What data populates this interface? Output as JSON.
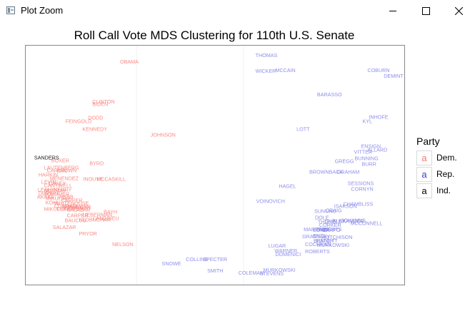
{
  "window": {
    "title": "Plot Zoom",
    "controls": {
      "minimize": "—",
      "maximize": "☐",
      "close": "✕"
    }
  },
  "colors": {
    "Dem.": "#f8766d",
    "Rep.": "#7a7ae6",
    "Ind.": "#000000",
    "grid": "#f0f0f0",
    "panel_border": "#888888"
  },
  "chart_data": {
    "type": "scatter",
    "title": "Roll Call Vote MDS Clustering for 110th U.S. Senate",
    "xlabel": "",
    "ylabel": "",
    "xlim": [
      0,
      534
    ],
    "ylim": [
      0,
      336
    ],
    "grid": true,
    "legend": {
      "title": "Party",
      "position": "right",
      "items": [
        {
          "label": "Dem.",
          "key": "a"
        },
        {
          "label": "Rep.",
          "key": "a"
        },
        {
          "label": "Ind.",
          "key": "a"
        }
      ]
    },
    "points": [
      {
        "name": "THOMAS",
        "party": "Rep.",
        "x": 324,
        "y": 320
      },
      {
        "name": "WICKER",
        "party": "Rep.",
        "x": 324,
        "y": 298
      },
      {
        "name": "MCCAIN",
        "party": "Rep.",
        "x": 352,
        "y": 299
      },
      {
        "name": "COBURN",
        "party": "Rep.",
        "x": 482,
        "y": 299
      },
      {
        "name": "DEMINT",
        "party": "Rep.",
        "x": 505,
        "y": 291
      },
      {
        "name": "BARASSO",
        "party": "Rep.",
        "x": 411,
        "y": 265
      },
      {
        "name": "INHOFE",
        "party": "Rep.",
        "x": 484,
        "y": 233
      },
      {
        "name": "KYL",
        "party": "Rep.",
        "x": 475,
        "y": 227
      },
      {
        "name": "LOTT",
        "party": "Rep.",
        "x": 382,
        "y": 216
      },
      {
        "name": "ENSIGN",
        "party": "Rep.",
        "x": 473,
        "y": 192
      },
      {
        "name": "ALLARD",
        "party": "Rep.",
        "x": 482,
        "y": 187
      },
      {
        "name": "VITTER",
        "party": "Rep.",
        "x": 463,
        "y": 184
      },
      {
        "name": "BUNNING",
        "party": "Rep.",
        "x": 464,
        "y": 175
      },
      {
        "name": "GREGG",
        "party": "Rep.",
        "x": 436,
        "y": 171
      },
      {
        "name": "BURR",
        "party": "Rep.",
        "x": 474,
        "y": 167
      },
      {
        "name": "BROWNBACK",
        "party": "Rep.",
        "x": 400,
        "y": 156
      },
      {
        "name": "GRAHAM",
        "party": "Rep.",
        "x": 439,
        "y": 156
      },
      {
        "name": "SESSIONS",
        "party": "Rep.",
        "x": 454,
        "y": 140
      },
      {
        "name": "CORNYN",
        "party": "Rep.",
        "x": 459,
        "y": 132
      },
      {
        "name": "HAGEL",
        "party": "Rep.",
        "x": 357,
        "y": 136
      },
      {
        "name": "VOINOVICH",
        "party": "Rep.",
        "x": 325,
        "y": 115
      },
      {
        "name": "CHAMBLISS",
        "party": "Rep.",
        "x": 448,
        "y": 111
      },
      {
        "name": "ISAKSON",
        "party": "Rep.",
        "x": 435,
        "y": 108
      },
      {
        "name": "SUNUNU",
        "party": "Rep.",
        "x": 407,
        "y": 101
      },
      {
        "name": "CRAIG",
        "party": "Rep.",
        "x": 423,
        "y": 102
      },
      {
        "name": "DOLE",
        "party": "Rep.",
        "x": 408,
        "y": 92
      },
      {
        "name": "CORKER",
        "party": "Rep.",
        "x": 414,
        "y": 81
      },
      {
        "name": "THUNE",
        "party": "Rep.",
        "x": 412,
        "y": 86
      },
      {
        "name": "ALEXANDER",
        "party": "Rep.",
        "x": 433,
        "y": 87
      },
      {
        "name": "JOHANNS",
        "party": "Rep.",
        "x": 445,
        "y": 88
      },
      {
        "name": "MCCONNELL",
        "party": "Rep.",
        "x": 458,
        "y": 84
      },
      {
        "name": "SHELBY",
        "party": "Rep.",
        "x": 422,
        "y": 87
      },
      {
        "name": "MARTINEZ",
        "party": "Rep.",
        "x": 392,
        "y": 75
      },
      {
        "name": "BOND",
        "party": "Rep.",
        "x": 405,
        "y": 74
      },
      {
        "name": "ROBERTS",
        "party": "Rep.",
        "x": 411,
        "y": 75
      },
      {
        "name": "CRAPO",
        "party": "Rep.",
        "x": 418,
        "y": 74
      },
      {
        "name": "ENZI",
        "party": "Rep.",
        "x": 405,
        "y": 66
      },
      {
        "name": "HUTCHISON",
        "party": "Rep.",
        "x": 418,
        "y": 64
      },
      {
        "name": "GRASSLEY",
        "party": "Rep.",
        "x": 390,
        "y": 65
      },
      {
        "name": "BENNETT",
        "party": "Rep.",
        "x": 406,
        "y": 59
      },
      {
        "name": "HATCH",
        "party": "Rep.",
        "x": 410,
        "y": 59
      },
      {
        "name": "COCHRAN",
        "party": "Rep.",
        "x": 394,
        "y": 54
      },
      {
        "name": "MURKOWSKI",
        "party": "Rep.",
        "x": 411,
        "y": 53
      },
      {
        "name": "LUGAR",
        "party": "Rep.",
        "x": 342,
        "y": 52
      },
      {
        "name": "WARNER",
        "party": "Rep.",
        "x": 351,
        "y": 45
      },
      {
        "name": "ROBERTS",
        "party": "Rep.",
        "x": 394,
        "y": 44
      },
      {
        "name": "DOMENICI",
        "party": "Rep.",
        "x": 352,
        "y": 40
      },
      {
        "name": "COLLINS",
        "party": "Rep.",
        "x": 226,
        "y": 33
      },
      {
        "name": "SPECTER",
        "party": "Rep.",
        "x": 250,
        "y": 33
      },
      {
        "name": "SNOWE",
        "party": "Rep.",
        "x": 192,
        "y": 27
      },
      {
        "name": "SMITH",
        "party": "Rep.",
        "x": 256,
        "y": 17
      },
      {
        "name": "COLEMAN",
        "party": "Rep.",
        "x": 300,
        "y": 14
      },
      {
        "name": "MURKOWSKI",
        "party": "Rep.",
        "x": 335,
        "y": 18
      },
      {
        "name": "STEVENS",
        "party": "Rep.",
        "x": 330,
        "y": 13
      },
      {
        "name": "OBAMA",
        "party": "Dem.",
        "x": 133,
        "y": 311
      },
      {
        "name": "CLINTON",
        "party": "Dem.",
        "x": 94,
        "y": 255
      },
      {
        "name": "BIDEN",
        "party": "Dem.",
        "x": 94,
        "y": 251
      },
      {
        "name": "DODD",
        "party": "Dem.",
        "x": 88,
        "y": 232
      },
      {
        "name": "FEINGOLD",
        "party": "Dem.",
        "x": 56,
        "y": 227
      },
      {
        "name": "KENNEDY",
        "party": "Dem.",
        "x": 80,
        "y": 216
      },
      {
        "name": "JOHNSON",
        "party": "Dem.",
        "x": 176,
        "y": 208
      },
      {
        "name": "BOXER",
        "party": "Dem.",
        "x": 36,
        "y": 172
      },
      {
        "name": "BYRD",
        "party": "Dem.",
        "x": 90,
        "y": 168
      },
      {
        "name": "LAUTENBERG",
        "party": "Dem.",
        "x": 26,
        "y": 162
      },
      {
        "name": "CARDIN",
        "party": "Dem.",
        "x": 30,
        "y": 158
      },
      {
        "name": "BROWN",
        "party": "Dem.",
        "x": 44,
        "y": 158
      },
      {
        "name": "HARKIN",
        "party": "Dem.",
        "x": 18,
        "y": 152
      },
      {
        "name": "MENENDEZ",
        "party": "Dem.",
        "x": 34,
        "y": 147
      },
      {
        "name": "INOUYE",
        "party": "Dem.",
        "x": 81,
        "y": 146
      },
      {
        "name": "MCCASKILL",
        "party": "Dem.",
        "x": 100,
        "y": 146
      },
      {
        "name": "LEVIN",
        "party": "Dem.",
        "x": 22,
        "y": 142
      },
      {
        "name": "CASEY",
        "party": "Dem.",
        "x": 32,
        "y": 140
      },
      {
        "name": "CANTWELL",
        "party": "Dem.",
        "x": 26,
        "y": 137
      },
      {
        "name": "LEAHY",
        "party": "Dem.",
        "x": 17,
        "y": 131
      },
      {
        "name": "MURRAY",
        "party": "Dem.",
        "x": 26,
        "y": 130
      },
      {
        "name": "KERRY",
        "party": "Dem.",
        "x": 40,
        "y": 131
      },
      {
        "name": "DURBIN",
        "party": "Dem.",
        "x": 18,
        "y": 126
      },
      {
        "name": "SCHUMER",
        "party": "Dem.",
        "x": 25,
        "y": 125
      },
      {
        "name": "AKAKA",
        "party": "Dem.",
        "x": 16,
        "y": 121
      },
      {
        "name": "MIKULSKI",
        "party": "Dem.",
        "x": 28,
        "y": 119
      },
      {
        "name": "WEBB",
        "party": "Dem.",
        "x": 46,
        "y": 121
      },
      {
        "name": "KOHL",
        "party": "Dem.",
        "x": 28,
        "y": 113
      },
      {
        "name": "WHITEHOUSE",
        "party": "Dem.",
        "x": 40,
        "y": 112
      },
      {
        "name": "CARPER",
        "party": "Dem.",
        "x": 50,
        "y": 116
      },
      {
        "name": "CONRAD",
        "party": "Dem.",
        "x": 40,
        "y": 108
      },
      {
        "name": "BINGAMAN",
        "party": "Dem.",
        "x": 52,
        "y": 108
      },
      {
        "name": "DORGAN",
        "party": "Dem.",
        "x": 60,
        "y": 106
      },
      {
        "name": "MIKULSKI",
        "party": "Dem.",
        "x": 26,
        "y": 104
      },
      {
        "name": "FEINSTEIN",
        "party": "Dem.",
        "x": 44,
        "y": 104
      },
      {
        "name": "SALAZAR",
        "party": "Dem.",
        "x": 58,
        "y": 103
      },
      {
        "name": "BAYH",
        "party": "Dem.",
        "x": 110,
        "y": 100
      },
      {
        "name": "CARPER",
        "party": "Dem.",
        "x": 58,
        "y": 95
      },
      {
        "name": "LIEBERMAN",
        "party": "Dem.",
        "x": 80,
        "y": 96
      },
      {
        "name": "LANDRIEU",
        "party": "Dem.",
        "x": 95,
        "y": 91
      },
      {
        "name": "BAUCUS",
        "party": "Dem.",
        "x": 55,
        "y": 88
      },
      {
        "name": "KLOBUCHAR",
        "party": "Dem.",
        "x": 75,
        "y": 89
      },
      {
        "name": "SALAZAR",
        "party": "Dem.",
        "x": 38,
        "y": 78
      },
      {
        "name": "PRYOR",
        "party": "Dem.",
        "x": 75,
        "y": 69
      },
      {
        "name": "NELSON",
        "party": "Dem.",
        "x": 122,
        "y": 54
      },
      {
        "name": "SANDERS",
        "party": "Ind.",
        "x": 12,
        "y": 176
      }
    ]
  }
}
